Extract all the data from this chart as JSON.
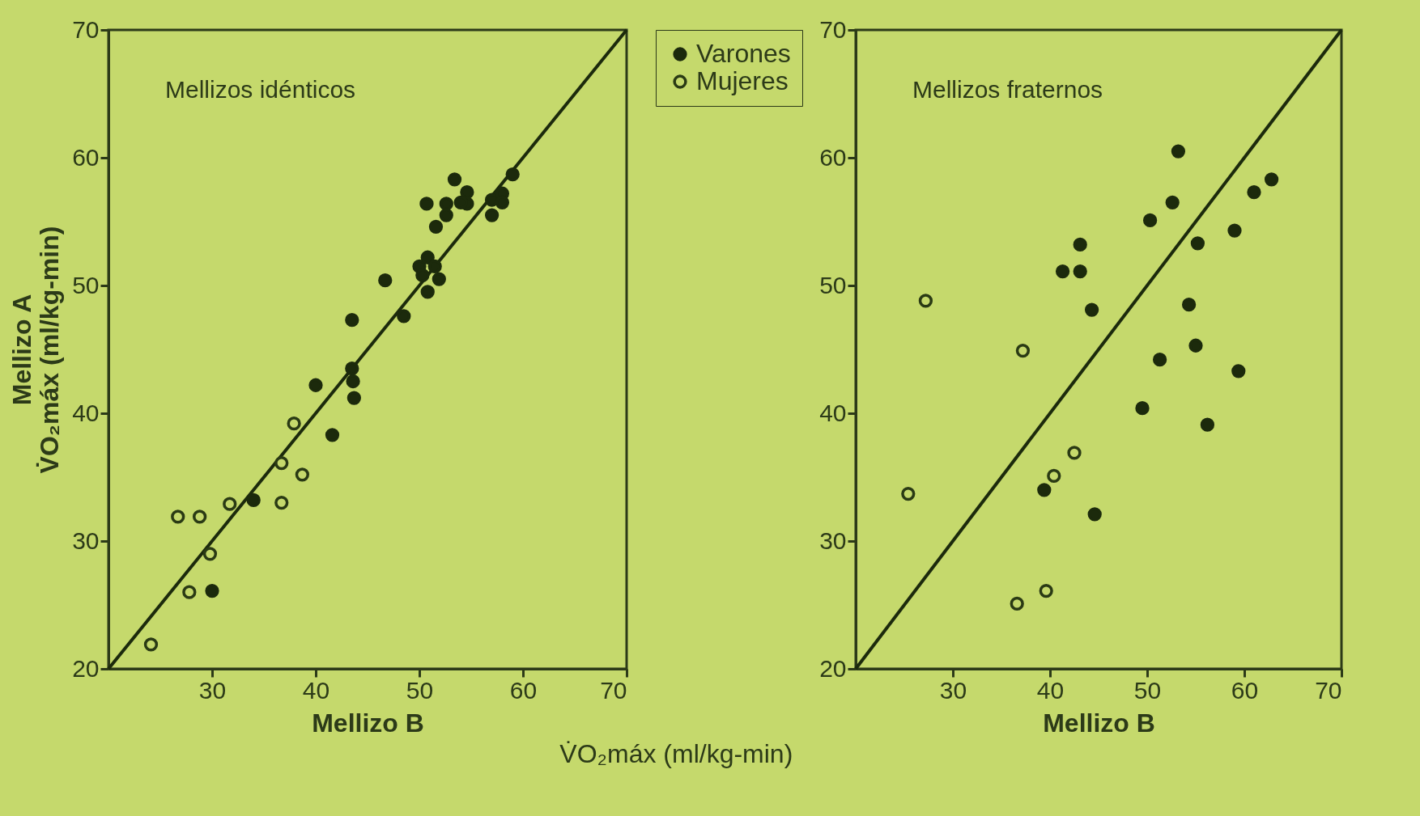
{
  "chart_data": [
    {
      "type": "scatter",
      "title": "Mellizos idénticos",
      "xlabel": "Mellizo B",
      "ylabel": "Mellizo A\nV̇O₂máx (ml/kg-min)",
      "annotations": [
        "V̇O₂máx (ml/kg-min)"
      ],
      "xlim": [
        20,
        70
      ],
      "ylim": [
        20,
        70
      ],
      "xticks": [
        30,
        40,
        50,
        60,
        70
      ],
      "yticks": [
        20,
        30,
        40,
        50,
        60,
        70
      ],
      "grid": false,
      "marker": "circle",
      "series": [
        {
          "color": "#1c2a0c",
          "x": [
            30,
            34,
            40,
            41.6,
            43.5,
            43.5,
            43.6,
            43.7,
            46.7,
            48.5,
            50.7,
            50,
            50.3,
            50.8,
            51.5,
            51.9,
            50.8,
            51.6,
            52.6,
            52.6,
            53.4,
            54.6,
            54.6,
            54,
            57,
            57,
            58,
            58,
            59
          ],
          "values": [
            26.1,
            33.2,
            42.2,
            38.3,
            47.3,
            43.5,
            42.5,
            41.2,
            50.4,
            47.6,
            56.4,
            51.5,
            50.8,
            52.2,
            51.5,
            50.5,
            49.5,
            54.6,
            56.4,
            55.5,
            58.3,
            57.3,
            56.4,
            56.5,
            56.7,
            55.5,
            57.2,
            56.5,
            58.7
          ]
        },
        {
          "color": "#2a3a14",
          "x": [
            24.1,
            26.7,
            28.8,
            27.8,
            29.8,
            31.7,
            36.7,
            36.7,
            37.9,
            38.7
          ],
          "values": [
            21.9,
            31.9,
            31.9,
            26,
            29,
            32.9,
            36.1,
            33,
            39.2,
            35.2
          ]
        },
        {
          "type": "line",
          "marker": "none",
          "line_style": "solid",
          "color": "#1c2a0c",
          "x": [
            20,
            70
          ],
          "values": [
            20,
            70
          ]
        }
      ]
    },
    {
      "type": "scatter",
      "title": "Mellizos fraternos",
      "xlabel": "Mellizo B",
      "xlim": [
        20,
        70
      ],
      "ylim": [
        20,
        70
      ],
      "xticks": [
        30,
        40,
        50,
        60,
        70
      ],
      "yticks": [
        20,
        30,
        40,
        50,
        60,
        70
      ],
      "grid": false,
      "marker": "circle",
      "legend": "left",
      "series": [
        {
          "name": "Varones",
          "color": "#1c2a0c",
          "x": [
            53.2,
            52.6,
            50.3,
            62.8,
            61,
            59,
            55.2,
            43.1,
            41.3,
            43.1,
            44.3,
            54.3,
            55,
            51.3,
            59.4,
            49.5,
            56.2,
            39.4,
            44.6
          ],
          "values": [
            60.5,
            56.5,
            55.1,
            58.3,
            57.3,
            54.3,
            53.3,
            53.2,
            51.1,
            51.1,
            48.1,
            48.5,
            45.3,
            44.2,
            43.3,
            40.4,
            39.1,
            34,
            32.1
          ]
        },
        {
          "name": "Mujeres",
          "color": "#2a3a14",
          "x": [
            27.2,
            37.2,
            25.4,
            42.5,
            40.4,
            36.6,
            39.6
          ],
          "values": [
            48.8,
            44.9,
            33.7,
            36.9,
            35.1,
            25.1,
            26.1
          ]
        },
        {
          "type": "line",
          "marker": "none",
          "line_style": "solid",
          "color": "#1c2a0c",
          "x": [
            20,
            70
          ],
          "values": [
            20,
            70
          ]
        }
      ]
    }
  ]
}
